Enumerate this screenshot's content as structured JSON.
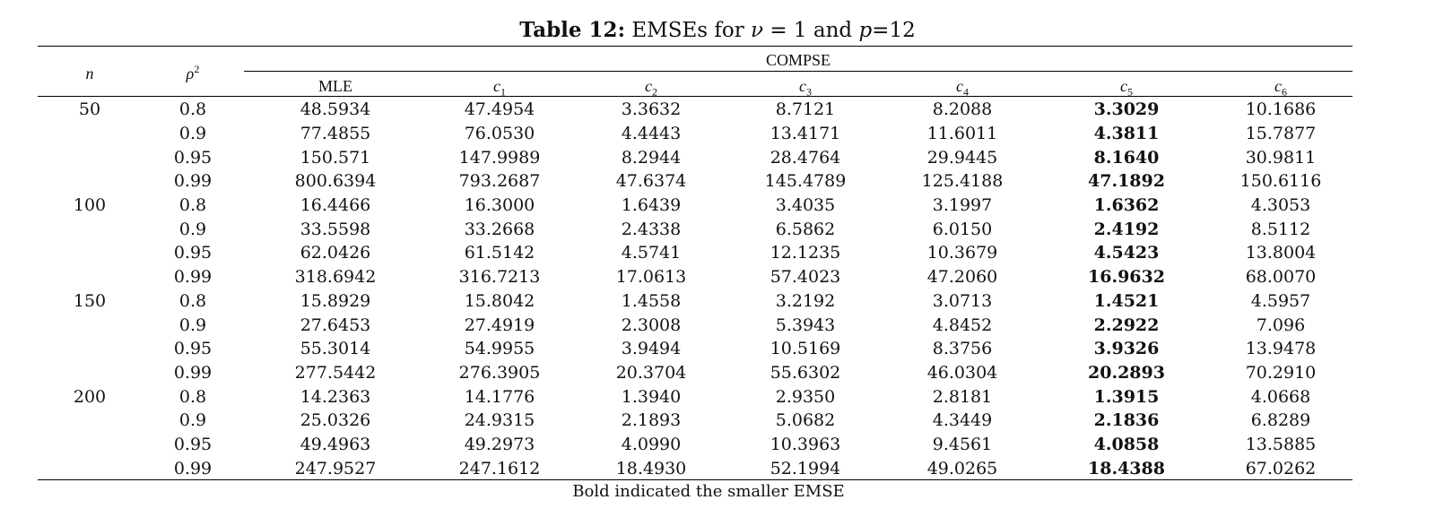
{
  "title": {
    "label": "Table 12:",
    "text_pre": "EMSEs for",
    "nu_sym": "ν",
    "eq": "= 1 and",
    "p_sym": "p",
    "p_val": "=12"
  },
  "header": {
    "n": "n",
    "rho_base": "ρ",
    "rho_sup": "2",
    "group": "COMPSE",
    "mle": "MLE",
    "c_base": "c",
    "c_subs": [
      "1",
      "2",
      "3",
      "4",
      "5",
      "6"
    ]
  },
  "rows": [
    {
      "n": "50",
      "rho": "0.8",
      "mle": "48.5934",
      "c1": "47.4954",
      "c2": "3.3632",
      "c3": "8.7121",
      "c4": "8.2088",
      "c5": "3.3029",
      "c6": "10.1686"
    },
    {
      "n": "",
      "rho": "0.9",
      "mle": "77.4855",
      "c1": "76.0530",
      "c2": "4.4443",
      "c3": "13.4171",
      "c4": "11.6011",
      "c5": "4.3811",
      "c6": "15.7877"
    },
    {
      "n": "",
      "rho": "0.95",
      "mle": "150.571",
      "c1": "147.9989",
      "c2": "8.2944",
      "c3": "28.4764",
      "c4": "29.9445",
      "c5": "8.1640",
      "c6": "30.9811"
    },
    {
      "n": "",
      "rho": "0.99",
      "mle": "800.6394",
      "c1": "793.2687",
      "c2": "47.6374",
      "c3": "145.4789",
      "c4": "125.4188",
      "c5": "47.1892",
      "c6": "150.6116"
    },
    {
      "n": "100",
      "rho": "0.8",
      "mle": "16.4466",
      "c1": "16.3000",
      "c2": "1.6439",
      "c3": "3.4035",
      "c4": "3.1997",
      "c5": "1.6362",
      "c6": "4.3053"
    },
    {
      "n": "",
      "rho": "0.9",
      "mle": "33.5598",
      "c1": "33.2668",
      "c2": "2.4338",
      "c3": "6.5862",
      "c4": "6.0150",
      "c5": "2.4192",
      "c6": "8.5112"
    },
    {
      "n": "",
      "rho": "0.95",
      "mle": "62.0426",
      "c1": "61.5142",
      "c2": "4.5741",
      "c3": "12.1235",
      "c4": "10.3679",
      "c5": "4.5423",
      "c6": "13.8004"
    },
    {
      "n": "",
      "rho": "0.99",
      "mle": "318.6942",
      "c1": "316.7213",
      "c2": "17.0613",
      "c3": "57.4023",
      "c4": "47.2060",
      "c5": "16.9632",
      "c6": "68.0070"
    },
    {
      "n": "150",
      "rho": "0.8",
      "mle": "15.8929",
      "c1": "15.8042",
      "c2": "1.4558",
      "c3": "3.2192",
      "c4": "3.0713",
      "c5": "1.4521",
      "c6": "4.5957"
    },
    {
      "n": "",
      "rho": "0.9",
      "mle": "27.6453",
      "c1": "27.4919",
      "c2": "2.3008",
      "c3": "5.3943",
      "c4": "4.8452",
      "c5": "2.2922",
      "c6": "7.096"
    },
    {
      "n": "",
      "rho": "0.95",
      "mle": "55.3014",
      "c1": "54.9955",
      "c2": "3.9494",
      "c3": "10.5169",
      "c4": "8.3756",
      "c5": "3.9326",
      "c6": "13.9478"
    },
    {
      "n": "",
      "rho": "0.99",
      "mle": "277.5442",
      "c1": "276.3905",
      "c2": "20.3704",
      "c3": "55.6302",
      "c4": "46.0304",
      "c5": "20.2893",
      "c6": "70.2910"
    },
    {
      "n": "200",
      "rho": "0.8",
      "mle": "14.2363",
      "c1": "14.1776",
      "c2": "1.3940",
      "c3": "2.9350",
      "c4": "2.8181",
      "c5": "1.3915",
      "c6": "4.0668"
    },
    {
      "n": "",
      "rho": "0.9",
      "mle": "25.0326",
      "c1": "24.9315",
      "c2": "2.1893",
      "c3": "5.0682",
      "c4": "4.3449",
      "c5": "2.1836",
      "c6": "6.8289"
    },
    {
      "n": "",
      "rho": "0.95",
      "mle": "49.4963",
      "c1": "49.2973",
      "c2": "4.0990",
      "c3": "10.3963",
      "c4": "9.4561",
      "c5": "4.0858",
      "c6": "13.5885"
    },
    {
      "n": "",
      "rho": "0.99",
      "mle": "247.9527",
      "c1": "247.1612",
      "c2": "18.4930",
      "c3": "52.1994",
      "c4": "49.0265",
      "c5": "18.4388",
      "c6": "67.0262"
    }
  ],
  "note": "Bold indicated the smaller EMSE"
}
